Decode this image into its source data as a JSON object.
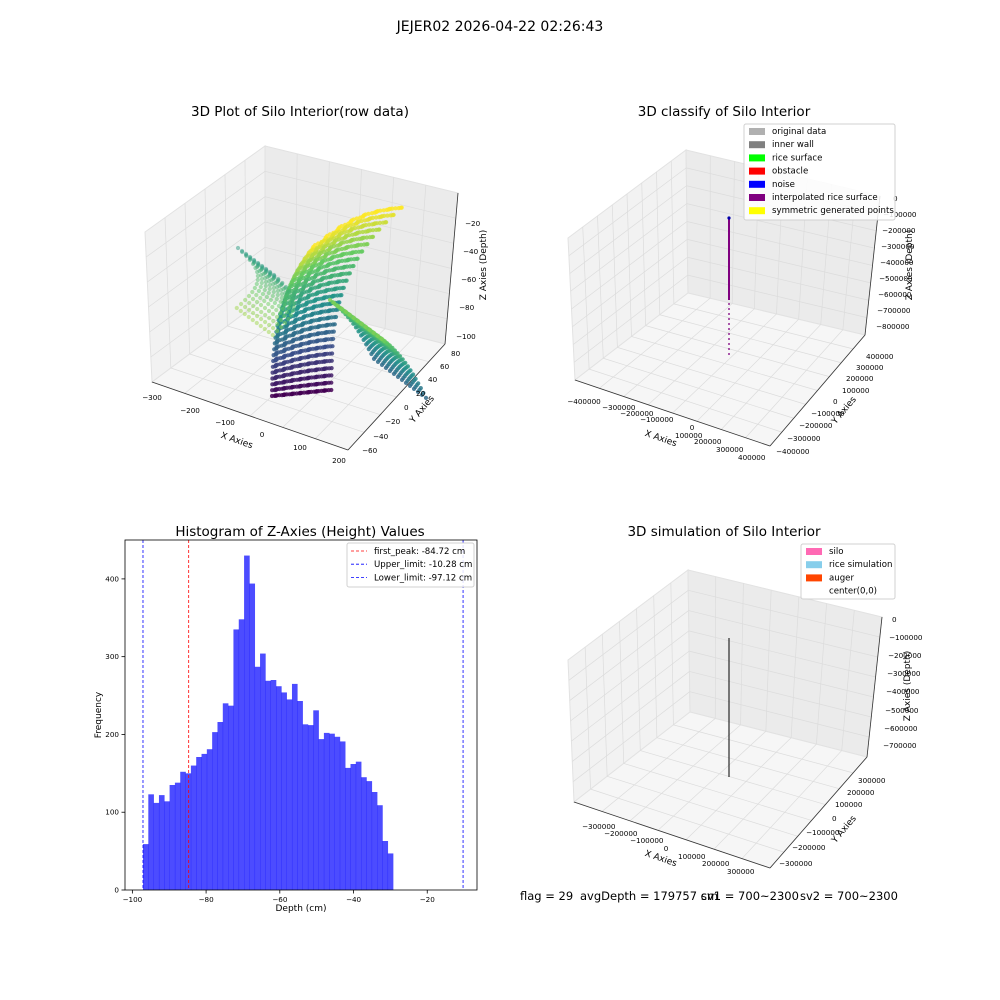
{
  "suptitle": "JEJER02 2026-04-22 02:26:43",
  "footer": {
    "flag": "flag = 29",
    "avgdepth": "avgDepth = 179757 cm",
    "sv1": "sv1 = 700~2300",
    "sv2": "sv2 = 700~2300"
  },
  "chart_data": [
    {
      "type": "scatter",
      "title": "3D Plot of Silo Interior(row data)",
      "xlabel": "X Axies",
      "ylabel": "Y Axies",
      "zlabel": "Z Axies (Depth)",
      "x_ticks": [
        "−300",
        "−200",
        "−100",
        "0",
        "100",
        "200"
      ],
      "y_ticks": [
        "−60",
        "−40",
        "−20",
        "0",
        "20",
        "40",
        "60",
        "80"
      ],
      "z_ticks": [
        "−100",
        "−80",
        "−60",
        "−40",
        "−20"
      ],
      "xlim": [
        -300,
        200
      ],
      "ylim": [
        -60,
        80
      ],
      "zlim": [
        -100,
        -20
      ],
      "colormap": "viridis"
    },
    {
      "type": "scatter",
      "title": "3D classify of Silo Interior",
      "xlabel": "X Axies",
      "ylabel": "Y Axies",
      "zlabel": "Z Axies (Depth)",
      "x_ticks": [
        "−400000",
        "−300000",
        "−200000",
        "−100000",
        "0",
        "100000",
        "200000",
        "300000",
        "400000"
      ],
      "y_ticks": [
        "−400000",
        "−300000",
        "−200000",
        "−100000",
        "0",
        "100000",
        "200000",
        "300000",
        "400000"
      ],
      "z_ticks": [
        "−800000",
        "−700000",
        "−600000",
        "−500000",
        "−400000",
        "−300000",
        "−200000",
        "−100000",
        "0"
      ],
      "legend": [
        {
          "label": "original data",
          "color": "#b0b0b0"
        },
        {
          "label": "inner wall",
          "color": "#808080"
        },
        {
          "label": "rice surface",
          "color": "#00ff00"
        },
        {
          "label": "obstacle",
          "color": "#ff0000"
        },
        {
          "label": "noise",
          "color": "#0000ff"
        },
        {
          "label": "interpolated rice surface",
          "color": "#800080"
        },
        {
          "label": "symmetric generated points",
          "color": "#ffff00"
        }
      ],
      "legend_position": "top-right"
    },
    {
      "type": "bar",
      "title": "Histogram of Z-Axies (Height) Values",
      "xlabel": "Depth (cm)",
      "ylabel": "Frequency",
      "xlim": [
        -102,
        -6.5
      ],
      "ylim": [
        0,
        450
      ],
      "x_ticks": [
        -100,
        -80,
        -60,
        -40,
        -20
      ],
      "x_tick_labels": [
        "−100",
        "−80",
        "−60",
        "−40",
        "−20"
      ],
      "y_ticks": [
        0,
        100,
        200,
        300,
        400
      ],
      "bin_start": -97.12,
      "bin_width": 1.4436,
      "values": [
        59,
        123,
        112,
        122,
        114,
        135,
        138,
        152,
        150,
        160,
        171,
        175,
        181,
        203,
        216,
        240,
        237,
        335,
        348,
        430,
        394,
        287,
        304,
        269,
        270,
        262,
        254,
        245,
        265,
        243,
        213,
        212,
        231,
        194,
        202,
        201,
        197,
        191,
        157,
        162,
        165,
        145,
        140,
        126,
        109,
        63,
        47
      ],
      "bar_color": "#0000ff",
      "bar_opacity": 0.7,
      "vlines": [
        {
          "x": -84.72,
          "color": "#ff0000",
          "label": "first_peak: -84.72 cm"
        },
        {
          "x": -10.28,
          "color": "#0000ff",
          "label": "Upper_limit: -10.28 cm"
        },
        {
          "x": -97.12,
          "color": "#0000ff",
          "label": "Lower_limit: -97.12 cm"
        }
      ],
      "legend_position": "top-right"
    },
    {
      "type": "scatter",
      "title": "3D simulation of Silo Interior",
      "xlabel": "X Axies",
      "ylabel": "Y Axies",
      "zlabel": "Z Axies (Depth)",
      "x_ticks": [
        "−300000",
        "−200000",
        "−100000",
        "0",
        "100000",
        "200000",
        "300000"
      ],
      "y_ticks": [
        "−300000",
        "−200000",
        "−100000",
        "0",
        "100000",
        "200000",
        "300000"
      ],
      "z_ticks": [
        "−700000",
        "−600000",
        "−500000",
        "−400000",
        "−300000",
        "−200000",
        "−100000",
        "0"
      ],
      "legend": [
        {
          "label": "silo",
          "color": "#ff69b4"
        },
        {
          "label": "rice simulation",
          "color": "#87ceeb"
        },
        {
          "label": "auger",
          "color": "#ff4500"
        },
        {
          "label": "center(0,0)",
          "color": ""
        }
      ],
      "legend_position": "top-right"
    }
  ]
}
